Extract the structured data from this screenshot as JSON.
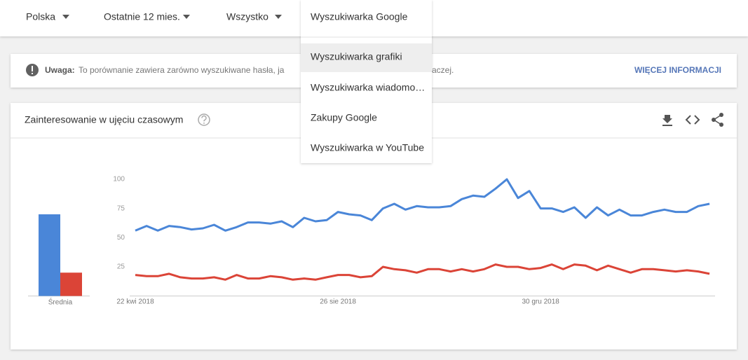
{
  "filters": [
    "Polska",
    "Ostatnie 12 mies.",
    "Wszystko"
  ],
  "dropdown": {
    "items": [
      "Wyszukiwarka Google",
      "Wyszukiwarka grafiki",
      "Wyszukiwarka wiadomo…",
      "Zakupy Google",
      "Wyszukiwarka w YouTube"
    ]
  },
  "notice": {
    "label": "Uwaga:",
    "text_start": "To porównanie zawiera zarówno wyszukiwane hasła, ja",
    "text_end": "aczej.",
    "link": "WIĘCEJ INFORMACJI"
  },
  "card": {
    "title": "Zainteresowanie w ujęciu czasowym"
  },
  "chart_data": {
    "type": "line",
    "categories": [
      "22 kwi 2018",
      null,
      null,
      null,
      null,
      null,
      null,
      null,
      null,
      null,
      null,
      null,
      null,
      null,
      null,
      null,
      null,
      null,
      "26 sie 2018",
      null,
      null,
      null,
      null,
      null,
      null,
      null,
      null,
      null,
      null,
      null,
      null,
      null,
      null,
      null,
      null,
      null,
      "30 gru 2018",
      null,
      null,
      null,
      null,
      null,
      null,
      null,
      null,
      null,
      null,
      null,
      null,
      null,
      null,
      null
    ],
    "series": [
      {
        "color": "#4a86d8",
        "values": [
          56,
          60,
          56,
          60,
          59,
          57,
          58,
          61,
          56,
          59,
          63,
          63,
          62,
          64,
          59,
          67,
          64,
          65,
          72,
          70,
          69,
          65,
          75,
          79,
          74,
          77,
          76,
          76,
          77,
          83,
          86,
          85,
          92,
          100,
          84,
          90,
          75,
          75,
          72,
          76,
          67,
          76,
          69,
          74,
          69,
          69,
          72,
          74,
          72,
          72,
          77,
          79
        ]
      },
      {
        "color": "#db4437",
        "values": [
          18,
          17,
          17,
          19,
          16,
          15,
          15,
          16,
          14,
          18,
          15,
          15,
          17,
          16,
          14,
          15,
          14,
          16,
          18,
          18,
          16,
          17,
          25,
          23,
          22,
          20,
          23,
          23,
          21,
          23,
          21,
          23,
          27,
          25,
          25,
          23,
          24,
          27,
          23,
          27,
          26,
          22,
          26,
          23,
          20,
          23,
          23,
          22,
          21,
          22,
          21,
          19
        ]
      }
    ],
    "ylim": [
      0,
      100
    ],
    "yticks": [
      25,
      50,
      75,
      100
    ],
    "grid": false,
    "averages": {
      "label": "Średnia",
      "values": [
        70,
        20
      ]
    }
  }
}
